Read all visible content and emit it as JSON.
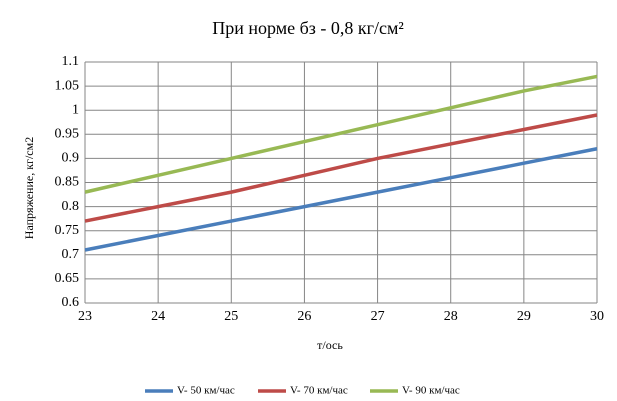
{
  "chart_data": {
    "type": "line",
    "title": "При норме бз  - 0,8 кг/см²",
    "x_label": "т/ось",
    "y_label": "Напряжение, кг/см2",
    "x": [
      23,
      24,
      25,
      26,
      27,
      28,
      29,
      30
    ],
    "series": [
      {
        "name": "V- 50 км/час",
        "color": "#4a7ebb",
        "values": [
          0.71,
          0.74,
          0.77,
          0.8,
          0.83,
          0.86,
          0.89,
          0.92
        ]
      },
      {
        "name": "V- 70 км/час",
        "color": "#be4b48",
        "values": [
          0.77,
          0.8,
          0.83,
          0.865,
          0.9,
          0.93,
          0.96,
          0.99
        ]
      },
      {
        "name": "V- 90 км/час",
        "color": "#98b954",
        "values": [
          0.83,
          0.865,
          0.9,
          0.935,
          0.97,
          1.005,
          1.04,
          1.07
        ]
      }
    ],
    "xlim": [
      23,
      30
    ],
    "xticks": [
      23,
      24,
      25,
      26,
      27,
      28,
      29,
      30
    ],
    "ylim": [
      0.6,
      1.1
    ],
    "yticks": [
      0.6,
      0.65,
      0.7,
      0.75,
      0.8,
      0.85,
      0.9,
      0.95,
      1,
      1.05,
      1.1
    ],
    "grid": true,
    "legend": "bottom"
  }
}
